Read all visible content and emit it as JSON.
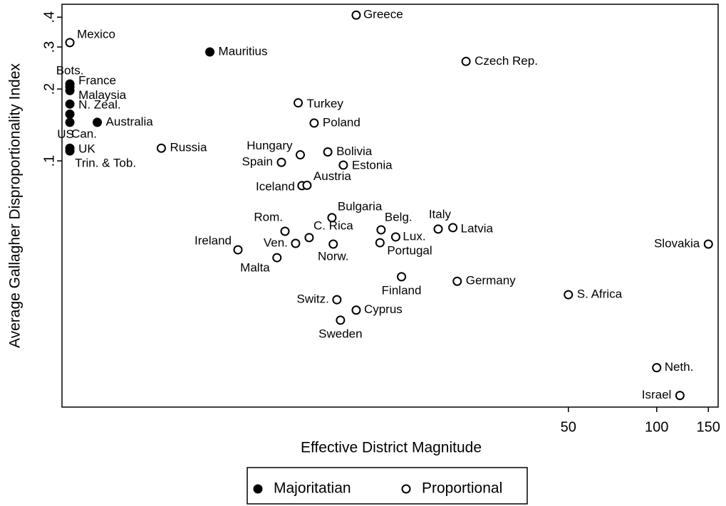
{
  "chart_data": {
    "type": "scatter",
    "x_label": "Effective District Magnitude",
    "y_label": "Average Gallagher Disproportionality Index",
    "xscale": "log",
    "yscale": "log",
    "xlim": [
      0.94,
      162
    ],
    "ylim": [
      0.0093,
      0.453
    ],
    "xticks": [
      50,
      100,
      150
    ],
    "yticks": [
      {
        "value": 0.1,
        "label": ".1"
      },
      {
        "value": 0.2,
        "label": ".2"
      },
      {
        "value": 0.3,
        "label": ".3"
      },
      {
        "value": 0.4,
        "label": ".4"
      }
    ],
    "series": [
      {
        "name": "Majoritatian",
        "color": "#000000",
        "filled": true,
        "x": [
          3.0,
          1,
          1,
          1,
          1,
          1,
          1,
          1,
          1,
          1.24
        ],
        "values": [
          0.286,
          0.21,
          0.204,
          0.197,
          0.173,
          0.157,
          0.145,
          0.113,
          0.11,
          0.145
        ],
        "labels": [
          "Mauritius",
          "Bots.",
          "France",
          "Malaysia",
          "N. Zeal.",
          "US",
          "Can.",
          "UK",
          "Trin. & Tob.",
          "Australia"
        ]
      },
      {
        "name": "Proportional",
        "color": "#000000",
        "filled": false,
        "x": [
          1,
          9.46,
          22.4,
          6.0,
          6.8,
          2.05,
          6.1,
          7.57,
          5.26,
          8.55,
          6.18,
          6.43,
          7.82,
          5.41,
          6.54,
          11.5,
          18.0,
          20.2,
          12.9,
          11.4,
          5.88,
          7.9,
          3.74,
          5.08,
          150,
          13.5,
          20.9,
          50,
          8.13,
          9.46,
          8.36,
          100,
          120
        ],
        "values": [
          0.313,
          0.408,
          0.261,
          0.175,
          0.144,
          0.113,
          0.106,
          0.109,
          0.0986,
          0.096,
          0.0787,
          0.079,
          0.0578,
          0.0507,
          0.0477,
          0.0514,
          0.0518,
          0.0525,
          0.048,
          0.0454,
          0.0451,
          0.0448,
          0.0424,
          0.0393,
          0.0448,
          0.0327,
          0.0313,
          0.0275,
          0.0262,
          0.0237,
          0.0215,
          0.0136,
          0.0104
        ],
        "labels": [
          "Mexico",
          "Greece",
          "Czech Rep.",
          "Turkey",
          "Poland",
          "Russia",
          "Hungary",
          "Bolivia",
          "Spain",
          "Estonia",
          "Iceland",
          "Austria",
          "Bulgaria",
          "Rom.",
          "C. Rica",
          "Belg.",
          "Italy",
          "Latvia",
          "Lux.",
          "Portugal",
          "Ven.",
          "Norw.",
          "Ireland",
          "Malta",
          "Slovakia",
          "Finland",
          "Germany",
          "S. Africa",
          "Switz.",
          "Cyprus",
          "Sweden",
          "Neth.",
          "Israel"
        ]
      }
    ]
  }
}
